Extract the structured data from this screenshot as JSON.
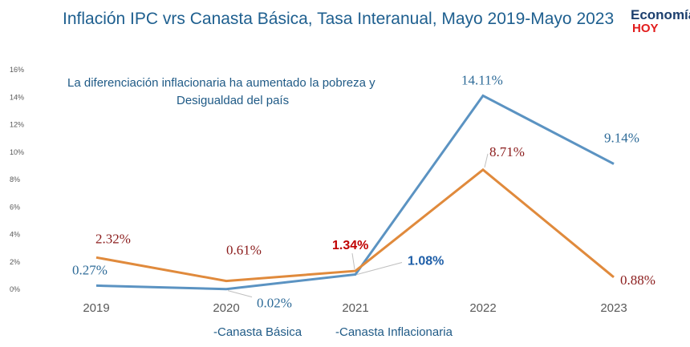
{
  "header": {
    "title": "Inflación IPC vrs Canasta  Básica, Tasa Interanual,  Mayo  2019-Mayo 2023"
  },
  "logo": {
    "line1": "Economía",
    "line2": "HOY"
  },
  "annotation": {
    "line1": "La diferenciación  inflacionaria ha aumentado la pobreza y",
    "line2": "Desigualdad del país"
  },
  "legend": {
    "items": [
      "-Canasta Básica",
      "-Canasta Inflacionaria"
    ]
  },
  "colors": {
    "series_basica": "#5b93c2",
    "series_inflacionaria": "#e08a3c",
    "label_dark_red": "#8b1c1c",
    "label_red_bold": "#c00000",
    "label_blue": "#2e6b98",
    "label_blue_bold": "#1f5fa8"
  },
  "chart_data": {
    "type": "line",
    "title": "Inflación IPC vrs Canasta  Básica, Tasa Interanual,  Mayo  2019-Mayo 2023",
    "xlabel": "",
    "ylabel": "",
    "categories": [
      "2019",
      "2020",
      "2021",
      "2022",
      "2023"
    ],
    "yticks": [
      "0%",
      "2%",
      "4%",
      "6%",
      "8%",
      "10%",
      "12%",
      "14%",
      "16%"
    ],
    "ylim": [
      0,
      16
    ],
    "grid": false,
    "legend_position": "bottom",
    "series": [
      {
        "name": "-Canasta Básica",
        "values": [
          0.27,
          0.02,
          1.08,
          14.11,
          9.14
        ],
        "labels": [
          "0.27%",
          "0.02%",
          "1.08%",
          "14.11%",
          "9.14%"
        ]
      },
      {
        "name": "-Canasta Inflacionaria",
        "values": [
          2.32,
          0.61,
          1.34,
          8.71,
          0.88
        ],
        "labels": [
          "2.32%",
          "0.61%",
          "1.34%",
          "8.71%",
          "0.88%"
        ]
      }
    ]
  }
}
